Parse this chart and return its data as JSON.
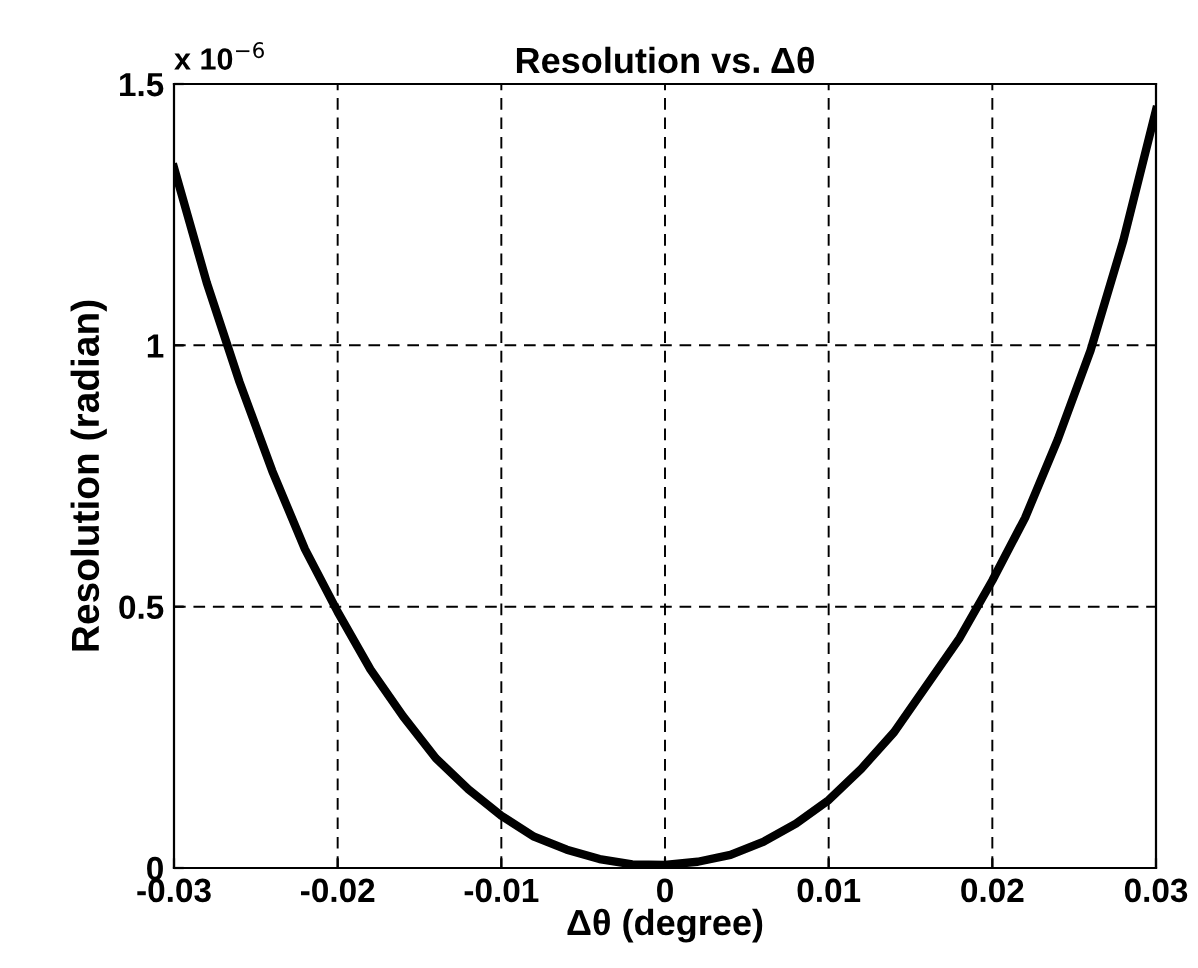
{
  "chart_data": {
    "type": "line",
    "title": "Resolution vs. Δθ",
    "xlabel": "Δθ (degree)",
    "ylabel": "Resolution (radian)",
    "annotations": [
      "x 10$^{−6}$"
    ],
    "x": [
      -0.03,
      -0.028,
      -0.026,
      -0.024,
      -0.022,
      -0.02,
      -0.018,
      -0.016,
      -0.014,
      -0.012,
      -0.01,
      -0.008,
      -0.006,
      -0.004,
      -0.002,
      0,
      0.002,
      0.004,
      0.006,
      0.008,
      0.01,
      0.012,
      0.014,
      0.016,
      0.018,
      0.02,
      0.022,
      0.024,
      0.026,
      0.028,
      0.03
    ],
    "series": [
      {
        "color": "#000000",
        "values": [
          1.34,
          1.12,
          0.93,
          0.76,
          0.61,
          0.49,
          0.38,
          0.29,
          0.21,
          0.15,
          0.1,
          0.06,
          0.035,
          0.017,
          0.007,
          0.006,
          0.012,
          0.025,
          0.05,
          0.085,
          0.13,
          0.19,
          0.26,
          0.35,
          0.44,
          0.55,
          0.67,
          0.82,
          0.99,
          1.2,
          1.45
        ]
      }
    ],
    "xlim": [
      -0.03,
      0.03
    ],
    "xticks": [
      -0.03,
      -0.02,
      -0.01,
      0,
      0.01,
      0.02,
      0.03
    ],
    "ylim": [
      0,
      1.5
    ],
    "yticks": [
      0,
      0.5,
      1,
      1.5
    ],
    "grid": true,
    "legend": false,
    "marker": "none",
    "line_style": "solid"
  }
}
